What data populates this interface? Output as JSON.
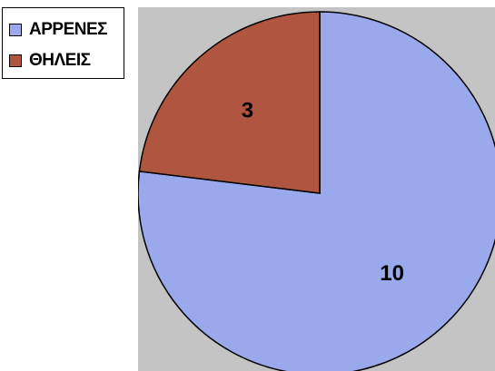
{
  "chart_data": {
    "type": "pie",
    "categories": [
      "ΑΡΡΕΝΕΣ",
      "ΘΗΛΕΙΣ"
    ],
    "values": [
      10,
      3
    ],
    "data_labels": [
      "10",
      "3"
    ],
    "colors": [
      "#9aa8ec",
      "#b05540"
    ],
    "legend_position": "top-left",
    "plot_background": "#c4c4c4"
  }
}
